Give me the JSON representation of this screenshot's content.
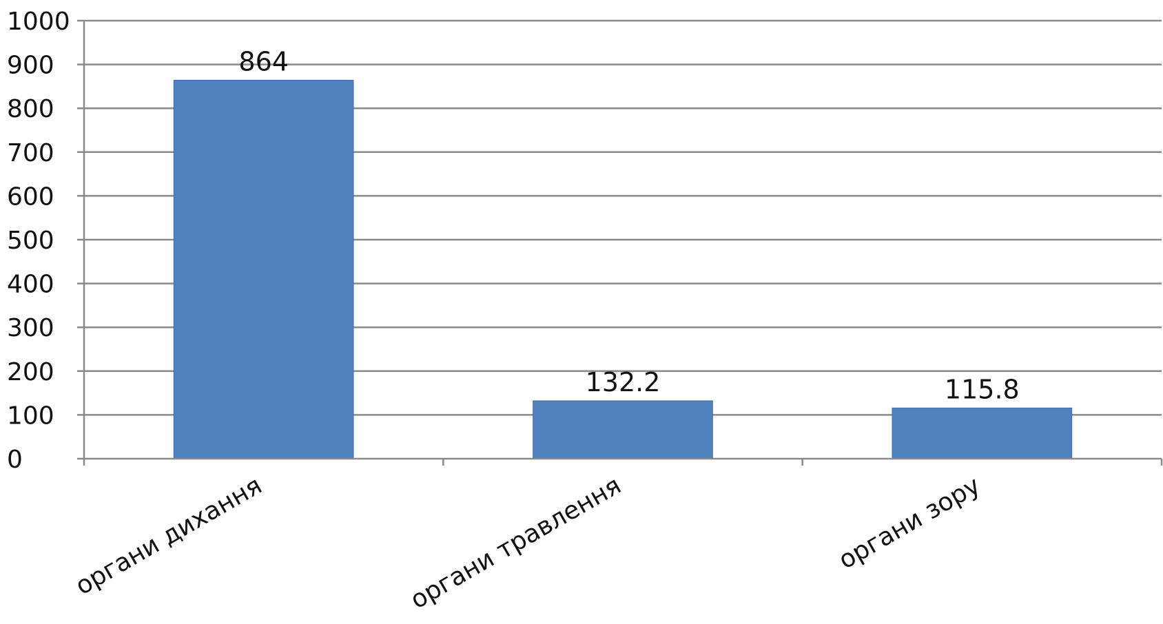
{
  "chart_data": {
    "type": "bar",
    "title": "",
    "xlabel": "",
    "ylabel": "",
    "categories": [
      "органи дихання",
      "органи травлення",
      "органи зору"
    ],
    "values": [
      864,
      132.2,
      115.8
    ],
    "data_labels": [
      "864",
      "132.2",
      "115.8"
    ],
    "ylim": [
      0,
      1000
    ],
    "yticks": [
      0,
      100,
      200,
      300,
      400,
      500,
      600,
      700,
      800,
      900,
      1000
    ],
    "ytick_labels": [
      "0",
      "100",
      "200",
      "300",
      "400",
      "500",
      "600",
      "700",
      "800",
      "900",
      "1000"
    ],
    "grid": true,
    "legend": "none",
    "bar_color": "#4f81bd"
  }
}
